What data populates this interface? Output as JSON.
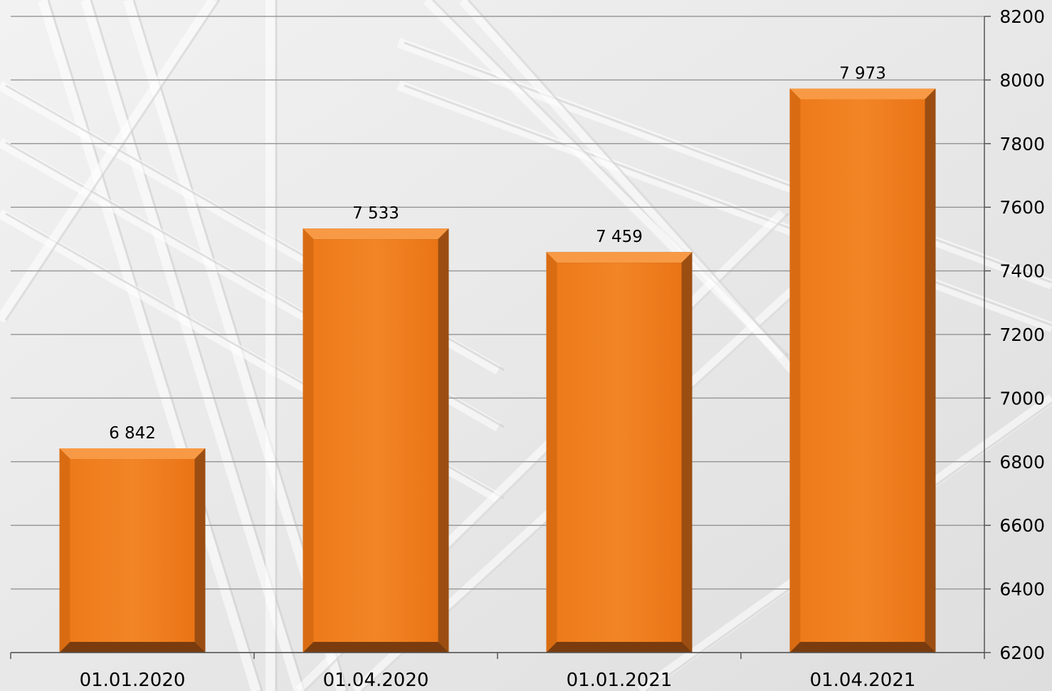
{
  "chart_data": {
    "type": "bar",
    "title": "",
    "xlabel": "",
    "ylabel": "",
    "categories": [
      "01.01.2020",
      "01.04.2020",
      "01.01.2021",
      "01.04.2021"
    ],
    "series": [
      {
        "values": [
          6842,
          7533,
          7459,
          7973
        ]
      }
    ],
    "data_labels": [
      "6 842",
      "7 533",
      "7 459",
      "7 973"
    ],
    "ylim": [
      6200,
      8200
    ],
    "yticks": [
      6200,
      6400,
      6600,
      6800,
      7000,
      7200,
      7400,
      7600,
      7800,
      8000,
      8200
    ],
    "y_axis_side": "right",
    "grid": true,
    "legend": "none",
    "colors": {
      "bar": "#f07f1f",
      "bar_light": "#f89a45",
      "bar_dark": "#8a4510",
      "grid": "#9a9a9a",
      "background": "#e9e9e9"
    }
  }
}
